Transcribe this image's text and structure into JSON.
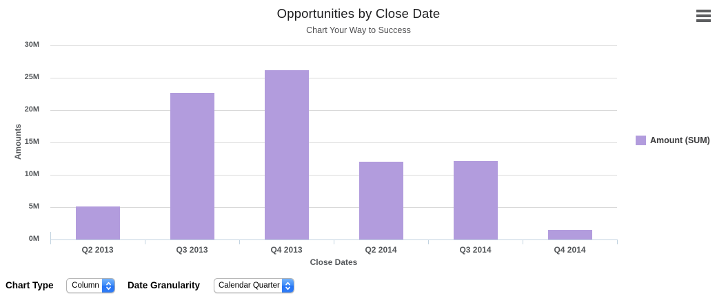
{
  "header": {
    "title": "Opportunities by Close Date",
    "subtitle": "Chart Your Way to Success"
  },
  "chart_data": {
    "type": "bar",
    "title": "Opportunities by Close Date",
    "subtitle": "Chart Your Way to Success",
    "categories": [
      "Q2 2013",
      "Q3 2013",
      "Q4 2013",
      "Q2 2014",
      "Q3 2014",
      "Q4 2014"
    ],
    "series": [
      {
        "name": "Amount (SUM)",
        "values": [
          5.1,
          22.7,
          26.2,
          12.0,
          12.1,
          1.5
        ]
      }
    ],
    "value_unit": "M",
    "xlabel": "Close Dates",
    "ylabel": "Amounts",
    "ylim": [
      0,
      30
    ],
    "ytick_step": 5,
    "ytick_labels": [
      "0M",
      "5M",
      "10M",
      "15M",
      "20M",
      "25M",
      "30M"
    ],
    "grid": true,
    "legend_position": "right",
    "bar_color": "#b29cdd"
  },
  "legend": {
    "label": "Amount (SUM)",
    "swatch_color": "#b29cdd"
  },
  "controls": {
    "chart_type": {
      "label": "Chart Type",
      "value": "Column"
    },
    "date_granularity": {
      "label": "Date Granularity",
      "value": "Calendar Quarter"
    }
  },
  "icons": {
    "menu": "hamburger-icon",
    "select_stepper": "up-down-chevrons-icon"
  },
  "colors": {
    "bar": "#b29cdd",
    "gridline": "#d9d9d9",
    "axis_line": "#c2d3e0",
    "tick_label_text": "#54575a",
    "stepper_blue": "#2f7cf6"
  }
}
